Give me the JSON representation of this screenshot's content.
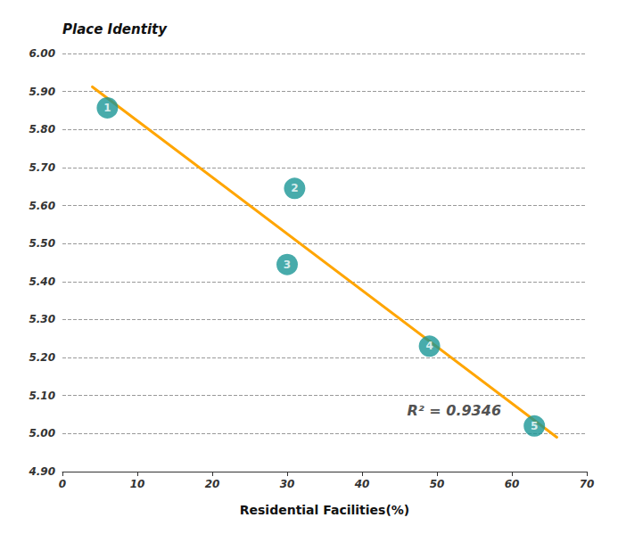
{
  "chart_data": {
    "type": "scatter",
    "xlabel": "Residential Facilities(%)",
    "ylabel": "Place Identity",
    "xlim": [
      0,
      70
    ],
    "ylim": [
      4.9,
      6.0
    ],
    "xticks": [
      0,
      10,
      20,
      30,
      40,
      50,
      60,
      70
    ],
    "yticks": [
      {
        "value": 4.9,
        "label": "4.90"
      },
      {
        "value": 5.0,
        "label": "5.00"
      },
      {
        "value": 5.1,
        "label": "5.10"
      },
      {
        "value": 5.2,
        "label": "5.20"
      },
      {
        "value": 5.3,
        "label": "5.30"
      },
      {
        "value": 5.4,
        "label": "5.40"
      },
      {
        "value": 5.5,
        "label": "5.50"
      },
      {
        "value": 5.6,
        "label": "5.60"
      },
      {
        "value": 5.7,
        "label": "5.70"
      },
      {
        "value": 5.8,
        "label": "5.80"
      },
      {
        "value": 5.9,
        "label": "5.90"
      },
      {
        "value": 6.0,
        "label": "6.00"
      }
    ],
    "grid": true,
    "series": [
      {
        "type": "line",
        "color": "#FFA500",
        "x": [
          4,
          66
        ],
        "values": [
          5.9121846,
          4.9904033
        ]
      },
      {
        "type": "scatter",
        "color": "#1a9696",
        "x": [
          6,
          31,
          30,
          49,
          63
        ],
        "values": [
          5.857,
          5.645,
          5.445,
          5.23,
          5.02
        ],
        "labels": [
          "1",
          "2",
          "3",
          "4",
          "5"
        ]
      }
    ],
    "annotations": [
      {
        "text": "R² = 0.9346",
        "x": 46,
        "y": 5.06
      }
    ]
  }
}
